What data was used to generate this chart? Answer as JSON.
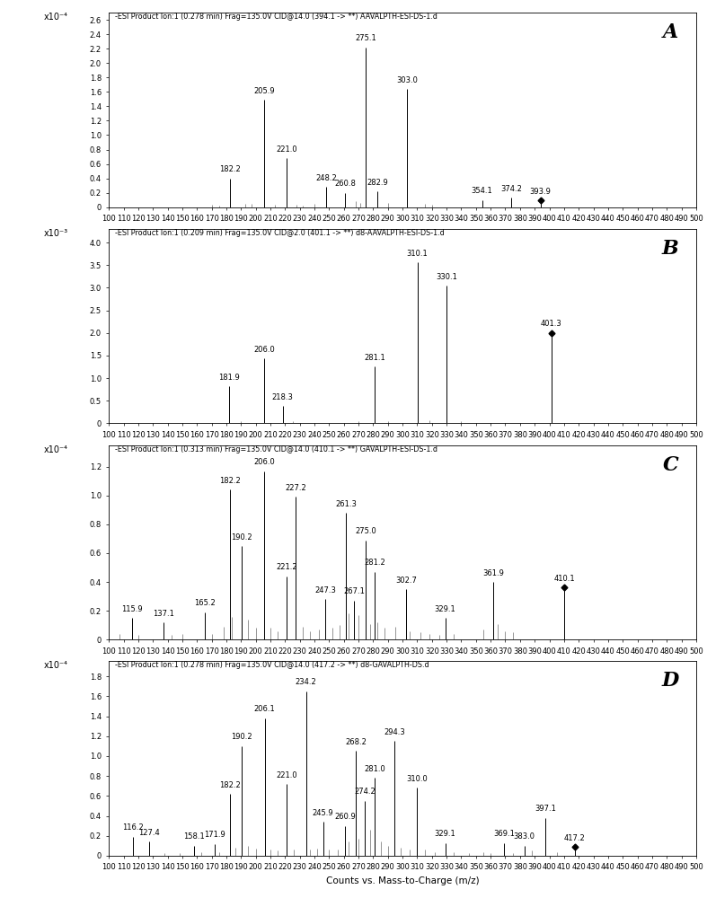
{
  "panels": [
    {
      "label": "A",
      "title": "-ESI Product Ion:1 (0.278 min) Frag=135.0V CID@14.0 (394.1 -> **) AAVALPTH-ESI-DS-1.d",
      "yscale_label": "x10⁻⁴",
      "ylim": [
        0,
        2.7
      ],
      "yticks": [
        0,
        0.2,
        0.4,
        0.6,
        0.8,
        1.0,
        1.2,
        1.4,
        1.6,
        1.8,
        2.0,
        2.2,
        2.4,
        2.6
      ],
      "peaks": [
        {
          "mz": 182.2,
          "intensity": 0.4,
          "label": "182.2",
          "marker": false
        },
        {
          "mz": 205.9,
          "intensity": 1.49,
          "label": "205.9",
          "marker": false
        },
        {
          "mz": 221.0,
          "intensity": 0.68,
          "label": "221.0",
          "marker": false
        },
        {
          "mz": 248.2,
          "intensity": 0.28,
          "label": "248.2",
          "marker": false
        },
        {
          "mz": 260.8,
          "intensity": 0.2,
          "label": "260.8",
          "marker": false
        },
        {
          "mz": 275.1,
          "intensity": 2.22,
          "label": "275.1",
          "marker": false
        },
        {
          "mz": 282.9,
          "intensity": 0.22,
          "label": "282.9",
          "marker": false
        },
        {
          "mz": 303.0,
          "intensity": 1.64,
          "label": "303.0",
          "marker": false
        },
        {
          "mz": 354.1,
          "intensity": 0.1,
          "label": "354.1",
          "marker": false
        },
        {
          "mz": 374.2,
          "intensity": 0.13,
          "label": "374.2",
          "marker": false
        },
        {
          "mz": 393.9,
          "intensity": 0.09,
          "label": "393.9",
          "marker": true
        }
      ],
      "minor_peaks": [
        {
          "mz": 170,
          "intensity": 0.03
        },
        {
          "mz": 175,
          "intensity": 0.02
        },
        {
          "mz": 193,
          "intensity": 0.05
        },
        {
          "mz": 197,
          "intensity": 0.04
        },
        {
          "mz": 213,
          "intensity": 0.03
        },
        {
          "mz": 228,
          "intensity": 0.03
        },
        {
          "mz": 232,
          "intensity": 0.02
        },
        {
          "mz": 240,
          "intensity": 0.05
        },
        {
          "mz": 268,
          "intensity": 0.08
        },
        {
          "mz": 271,
          "intensity": 0.06
        },
        {
          "mz": 290,
          "intensity": 0.06
        },
        {
          "mz": 315,
          "intensity": 0.04
        },
        {
          "mz": 320,
          "intensity": 0.03
        }
      ]
    },
    {
      "label": "B",
      "title": "-ESI Product Ion:1 (0.209 min) Frag=135.0V CID@2.0 (401.1 -> **) d8-AAVALPTH-ESI-DS-1.d",
      "yscale_label": "x10⁻³",
      "ylim": [
        0,
        4.3
      ],
      "yticks": [
        0,
        0.5,
        1.0,
        1.5,
        2.0,
        2.5,
        3.0,
        3.5,
        4.0
      ],
      "peaks": [
        {
          "mz": 181.9,
          "intensity": 0.82,
          "label": "181.9",
          "marker": false
        },
        {
          "mz": 206.0,
          "intensity": 1.44,
          "label": "206.0",
          "marker": false
        },
        {
          "mz": 218.3,
          "intensity": 0.38,
          "label": "218.3",
          "marker": false
        },
        {
          "mz": 281.1,
          "intensity": 1.25,
          "label": "281.1",
          "marker": false
        },
        {
          "mz": 310.1,
          "intensity": 3.56,
          "label": "310.1",
          "marker": false
        },
        {
          "mz": 330.1,
          "intensity": 3.04,
          "label": "330.1",
          "marker": false
        },
        {
          "mz": 401.3,
          "intensity": 2.0,
          "label": "401.3",
          "marker": true
        }
      ],
      "minor_peaks": [
        {
          "mz": 190,
          "intensity": 0.05
        },
        {
          "mz": 225,
          "intensity": 0.05
        },
        {
          "mz": 270,
          "intensity": 0.04
        },
        {
          "mz": 290,
          "intensity": 0.04
        },
        {
          "mz": 318,
          "intensity": 0.06
        },
        {
          "mz": 340,
          "intensity": 0.04
        }
      ]
    },
    {
      "label": "C",
      "title": "-ESI Product Ion:1 (0.313 min) Frag=135.0V CID@14.0 (410.1 -> **) GAVALPTH-ESI-DS-1.d",
      "yscale_label": "x10⁻⁴",
      "ylim": [
        0,
        1.35
      ],
      "yticks": [
        0,
        0.2,
        0.4,
        0.6,
        0.8,
        1.0,
        1.2
      ],
      "peaks": [
        {
          "mz": 115.9,
          "intensity": 0.15,
          "label": "115.9",
          "marker": false
        },
        {
          "mz": 137.1,
          "intensity": 0.12,
          "label": "137.1",
          "marker": false
        },
        {
          "mz": 165.2,
          "intensity": 0.19,
          "label": "165.2",
          "marker": false
        },
        {
          "mz": 182.2,
          "intensity": 1.04,
          "label": "182.2",
          "marker": false
        },
        {
          "mz": 190.2,
          "intensity": 0.65,
          "label": "190.2",
          "marker": false
        },
        {
          "mz": 206.0,
          "intensity": 1.17,
          "label": "206.0",
          "marker": false
        },
        {
          "mz": 221.2,
          "intensity": 0.44,
          "label": "221.2",
          "marker": false
        },
        {
          "mz": 227.2,
          "intensity": 0.99,
          "label": "227.2",
          "marker": false
        },
        {
          "mz": 247.3,
          "intensity": 0.28,
          "label": "247.3",
          "marker": false
        },
        {
          "mz": 261.3,
          "intensity": 0.88,
          "label": "261.3",
          "marker": false
        },
        {
          "mz": 267.1,
          "intensity": 0.27,
          "label": "267.1",
          "marker": false
        },
        {
          "mz": 275.0,
          "intensity": 0.69,
          "label": "275.0",
          "marker": false
        },
        {
          "mz": 281.2,
          "intensity": 0.47,
          "label": "281.2",
          "marker": false
        },
        {
          "mz": 302.7,
          "intensity": 0.35,
          "label": "302.7",
          "marker": false
        },
        {
          "mz": 329.1,
          "intensity": 0.15,
          "label": "329.1",
          "marker": false
        },
        {
          "mz": 361.9,
          "intensity": 0.4,
          "label": "361.9",
          "marker": false
        },
        {
          "mz": 410.1,
          "intensity": 0.36,
          "label": "410.1",
          "marker": true
        }
      ],
      "minor_peaks": [
        {
          "mz": 107,
          "intensity": 0.04
        },
        {
          "mz": 120,
          "intensity": 0.03
        },
        {
          "mz": 143,
          "intensity": 0.03
        },
        {
          "mz": 150,
          "intensity": 0.04
        },
        {
          "mz": 170,
          "intensity": 0.04
        },
        {
          "mz": 178,
          "intensity": 0.09
        },
        {
          "mz": 184,
          "intensity": 0.16
        },
        {
          "mz": 195,
          "intensity": 0.14
        },
        {
          "mz": 200,
          "intensity": 0.08
        },
        {
          "mz": 210,
          "intensity": 0.08
        },
        {
          "mz": 215,
          "intensity": 0.06
        },
        {
          "mz": 232,
          "intensity": 0.09
        },
        {
          "mz": 237,
          "intensity": 0.06
        },
        {
          "mz": 243,
          "intensity": 0.07
        },
        {
          "mz": 252,
          "intensity": 0.08
        },
        {
          "mz": 257,
          "intensity": 0.1
        },
        {
          "mz": 263,
          "intensity": 0.18
        },
        {
          "mz": 270,
          "intensity": 0.17
        },
        {
          "mz": 278,
          "intensity": 0.11
        },
        {
          "mz": 283,
          "intensity": 0.12
        },
        {
          "mz": 288,
          "intensity": 0.08
        },
        {
          "mz": 295,
          "intensity": 0.09
        },
        {
          "mz": 305,
          "intensity": 0.06
        },
        {
          "mz": 312,
          "intensity": 0.05
        },
        {
          "mz": 318,
          "intensity": 0.04
        },
        {
          "mz": 325,
          "intensity": 0.03
        },
        {
          "mz": 335,
          "intensity": 0.04
        },
        {
          "mz": 355,
          "intensity": 0.07
        },
        {
          "mz": 365,
          "intensity": 0.11
        },
        {
          "mz": 370,
          "intensity": 0.06
        },
        {
          "mz": 375,
          "intensity": 0.05
        }
      ]
    },
    {
      "label": "D",
      "title": "-ESI Product Ion:1 (0.278 min) Frag=135.0V CID@14.0 (417.2 -> **) d8-GAVALPTH-DS.d",
      "yscale_label": "x10⁻⁴",
      "ylim": [
        0,
        1.95
      ],
      "yticks": [
        0,
        0.2,
        0.4,
        0.6,
        0.8,
        1.0,
        1.2,
        1.4,
        1.6,
        1.8
      ],
      "peaks": [
        {
          "mz": 116.2,
          "intensity": 0.19,
          "label": "116.2",
          "marker": false
        },
        {
          "mz": 127.4,
          "intensity": 0.14,
          "label": "127.4",
          "marker": false
        },
        {
          "mz": 158.1,
          "intensity": 0.1,
          "label": "158.1",
          "marker": false
        },
        {
          "mz": 171.9,
          "intensity": 0.12,
          "label": "171.9",
          "marker": false
        },
        {
          "mz": 182.2,
          "intensity": 0.62,
          "label": "182.2",
          "marker": false
        },
        {
          "mz": 190.2,
          "intensity": 1.1,
          "label": "190.2",
          "marker": false
        },
        {
          "mz": 206.1,
          "intensity": 1.38,
          "label": "206.1",
          "marker": false
        },
        {
          "mz": 221.0,
          "intensity": 0.72,
          "label": "221.0",
          "marker": false
        },
        {
          "mz": 234.2,
          "intensity": 1.65,
          "label": "234.2",
          "marker": false
        },
        {
          "mz": 245.9,
          "intensity": 0.34,
          "label": "245.9",
          "marker": false
        },
        {
          "mz": 260.9,
          "intensity": 0.3,
          "label": "260.9",
          "marker": false
        },
        {
          "mz": 268.2,
          "intensity": 1.05,
          "label": "268.2",
          "marker": false
        },
        {
          "mz": 274.2,
          "intensity": 0.55,
          "label": "274.2",
          "marker": false
        },
        {
          "mz": 281.0,
          "intensity": 0.78,
          "label": "281.0",
          "marker": false
        },
        {
          "mz": 294.3,
          "intensity": 1.15,
          "label": "294.3",
          "marker": false
        },
        {
          "mz": 310.0,
          "intensity": 0.68,
          "label": "310.0",
          "marker": false
        },
        {
          "mz": 329.1,
          "intensity": 0.13,
          "label": "329.1",
          "marker": false
        },
        {
          "mz": 369.1,
          "intensity": 0.13,
          "label": "369.1",
          "marker": false
        },
        {
          "mz": 383.0,
          "intensity": 0.1,
          "label": "383.0",
          "marker": false
        },
        {
          "mz": 397.1,
          "intensity": 0.38,
          "label": "397.1",
          "marker": false
        },
        {
          "mz": 417.2,
          "intensity": 0.09,
          "label": "417.2",
          "marker": true
        }
      ],
      "minor_peaks": [
        {
          "mz": 138,
          "intensity": 0.03
        },
        {
          "mz": 148,
          "intensity": 0.03
        },
        {
          "mz": 163,
          "intensity": 0.04
        },
        {
          "mz": 175,
          "intensity": 0.04
        },
        {
          "mz": 186,
          "intensity": 0.08
        },
        {
          "mz": 195,
          "intensity": 0.1
        },
        {
          "mz": 200,
          "intensity": 0.07
        },
        {
          "mz": 210,
          "intensity": 0.06
        },
        {
          "mz": 215,
          "intensity": 0.05
        },
        {
          "mz": 226,
          "intensity": 0.06
        },
        {
          "mz": 237,
          "intensity": 0.06
        },
        {
          "mz": 242,
          "intensity": 0.07
        },
        {
          "mz": 250,
          "intensity": 0.06
        },
        {
          "mz": 256,
          "intensity": 0.06
        },
        {
          "mz": 263,
          "intensity": 0.14
        },
        {
          "mz": 270,
          "intensity": 0.17
        },
        {
          "mz": 278,
          "intensity": 0.26
        },
        {
          "mz": 285,
          "intensity": 0.14
        },
        {
          "mz": 290,
          "intensity": 0.1
        },
        {
          "mz": 299,
          "intensity": 0.08
        },
        {
          "mz": 305,
          "intensity": 0.06
        },
        {
          "mz": 315,
          "intensity": 0.06
        },
        {
          "mz": 322,
          "intensity": 0.04
        },
        {
          "mz": 335,
          "intensity": 0.04
        },
        {
          "mz": 345,
          "intensity": 0.03
        },
        {
          "mz": 355,
          "intensity": 0.04
        },
        {
          "mz": 360,
          "intensity": 0.03
        },
        {
          "mz": 375,
          "intensity": 0.03
        },
        {
          "mz": 388,
          "intensity": 0.05
        },
        {
          "mz": 405,
          "intensity": 0.04
        }
      ]
    }
  ],
  "xlabel": "Counts vs. Mass-to-Charge (m/z)",
  "xlim": [
    100,
    500
  ],
  "xticks": [
    100,
    110,
    120,
    130,
    140,
    150,
    160,
    170,
    180,
    190,
    200,
    210,
    220,
    230,
    240,
    250,
    260,
    270,
    280,
    290,
    300,
    310,
    320,
    330,
    340,
    350,
    360,
    370,
    380,
    390,
    400,
    410,
    420,
    430,
    440,
    450,
    460,
    470,
    480,
    490,
    500
  ],
  "line_color": "black",
  "bg_color": "white",
  "title_fontsize": 5.8,
  "label_fontsize": 7.5,
  "tick_fontsize": 6.0,
  "peak_label_fontsize": 6.0,
  "panel_label_fontsize": 16,
  "yscale_fontsize": 7.0
}
